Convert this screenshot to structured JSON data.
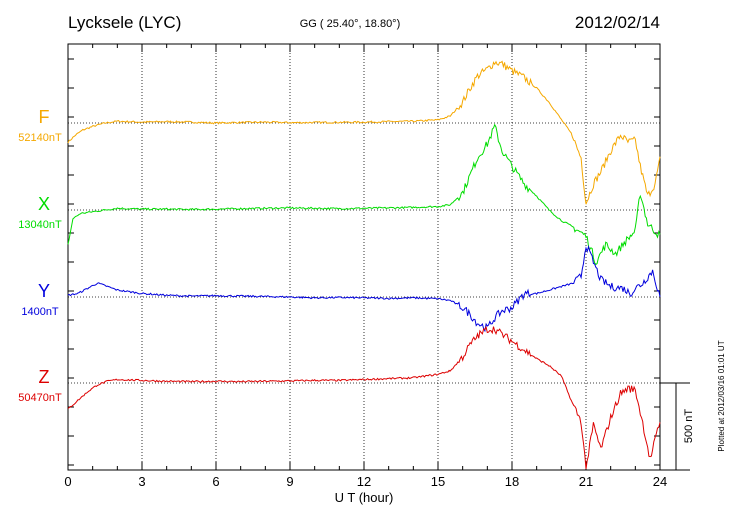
{
  "header": {
    "station": "Lycksele (LYC)",
    "coords": "GG ( 25.40°,  18.80°)",
    "date": "2012/02/14"
  },
  "footer": {
    "plotted": "Plotted at 2012/03/16 01:01  UT"
  },
  "colors": {
    "F": "#f5a800",
    "X": "#00dd00",
    "Y": "#0000dd",
    "Z": "#dd0000",
    "axis": "#000000"
  },
  "chart_data": {
    "type": "line",
    "xlabel": "U T (hour)",
    "xlim": [
      0,
      24
    ],
    "x_ticks": [
      "0",
      "3",
      "6",
      "9",
      "12",
      "15",
      "18",
      "21",
      "24"
    ],
    "scale_bar": "500 nT",
    "series": [
      {
        "name": "F",
        "baseline": "52140nT",
        "color": "#f5a800",
        "x": [
          0,
          0.3,
          0.6,
          1,
          1.5,
          2,
          3,
          4,
          5,
          6,
          7,
          8,
          9,
          10,
          11,
          12,
          13,
          14,
          15,
          15.5,
          16,
          16.3,
          16.6,
          17,
          17.3,
          17.6,
          18,
          18.5,
          19,
          19.5,
          20,
          20.4,
          20.8,
          21,
          21.3,
          21.6,
          22,
          22.4,
          22.7,
          23,
          23.2,
          23.5,
          23.8,
          24
        ],
        "y": [
          -110,
          -70,
          -40,
          -20,
          0,
          10,
          5,
          8,
          5,
          0,
          3,
          5,
          2,
          3,
          4,
          5,
          8,
          10,
          18,
          40,
          120,
          200,
          270,
          310,
          350,
          340,
          300,
          260,
          200,
          120,
          20,
          -60,
          -200,
          -460,
          -350,
          -280,
          -160,
          -70,
          -110,
          -100,
          -250,
          -420,
          -350,
          -210
        ]
      },
      {
        "name": "X",
        "baseline": "13040nT",
        "color": "#00dd00",
        "x": [
          0,
          0.2,
          0.5,
          1,
          1.5,
          2,
          3,
          4,
          5,
          6,
          7,
          8,
          9,
          10,
          11,
          12,
          13,
          14,
          15,
          15.5,
          16,
          16.3,
          16.6,
          17,
          17.3,
          17.6,
          18,
          18.5,
          19,
          19.5,
          20,
          20.5,
          21,
          21.4,
          21.8,
          22.2,
          22.6,
          23,
          23.2,
          23.5,
          24
        ],
        "y": [
          -200,
          -50,
          -20,
          -10,
          0,
          10,
          5,
          5,
          3,
          5,
          8,
          10,
          12,
          10,
          8,
          10,
          12,
          15,
          20,
          30,
          100,
          200,
          300,
          380,
          480,
          340,
          250,
          150,
          80,
          0,
          -60,
          -100,
          -150,
          -300,
          -200,
          -250,
          -180,
          -120,
          100,
          -80,
          -150
        ]
      },
      {
        "name": "Y",
        "baseline": "1400nT",
        "color": "#0000dd",
        "x": [
          0,
          0.4,
          0.8,
          1.2,
          1.6,
          2,
          3,
          4,
          5,
          6,
          7,
          8,
          9,
          10,
          11,
          12,
          13,
          14,
          15,
          15.5,
          16,
          16.3,
          16.6,
          17,
          17.3,
          17.6,
          18,
          18.5,
          19,
          19.5,
          20,
          20.5,
          20.8,
          21,
          21.3,
          21.6,
          22,
          22.5,
          22.8,
          23,
          23.3,
          23.7,
          24
        ],
        "y": [
          10,
          20,
          50,
          80,
          60,
          40,
          20,
          10,
          5,
          8,
          5,
          3,
          0,
          -5,
          -3,
          -5,
          -8,
          -5,
          -10,
          -20,
          -60,
          -100,
          -150,
          -180,
          -120,
          -80,
          -60,
          20,
          20,
          40,
          60,
          80,
          120,
          300,
          200,
          100,
          60,
          50,
          20,
          50,
          80,
          150,
          0
        ]
      },
      {
        "name": "Z",
        "baseline": "50470nT",
        "color": "#dd0000",
        "x": [
          0,
          0.4,
          0.8,
          1.2,
          1.6,
          2,
          3,
          4,
          5,
          6,
          7,
          8,
          9,
          10,
          11,
          12,
          13,
          14,
          15,
          15.5,
          16,
          16.3,
          16.6,
          17,
          17.3,
          17.6,
          18,
          18.5,
          19,
          19.5,
          20,
          20.4,
          20.8,
          21,
          21.3,
          21.6,
          22,
          22.4,
          22.7,
          23,
          23.3,
          23.6,
          24
        ],
        "y": [
          -150,
          -100,
          -50,
          -10,
          10,
          20,
          15,
          10,
          8,
          10,
          8,
          10,
          12,
          15,
          15,
          20,
          25,
          30,
          50,
          70,
          150,
          220,
          270,
          310,
          310,
          280,
          240,
          190,
          140,
          100,
          40,
          -100,
          -220,
          -490,
          -240,
          -380,
          -200,
          -60,
          -30,
          -40,
          -230,
          -440,
          -220
        ]
      }
    ]
  }
}
